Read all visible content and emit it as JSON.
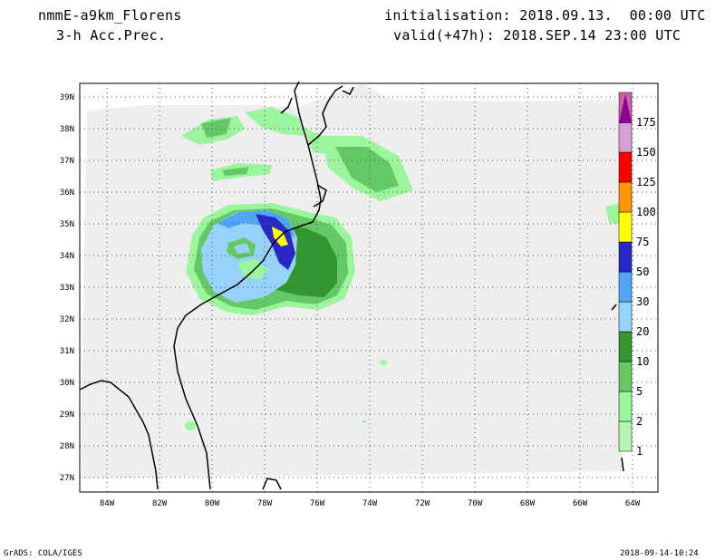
{
  "header": {
    "model": "nmmE-a9km_Florens",
    "field": "3-h Acc.Prec.",
    "init": "initialisation: 2018.09.13.  00:00 UTC",
    "valid": "valid(+47h): 2018.SEP.14 23:00 UTC"
  },
  "footer": {
    "credit": "GrADS: COLA/IGES",
    "timestamp": "2018-09-14-10:24"
  },
  "map": {
    "lat_labels": [
      "39N",
      "38N",
      "37N",
      "36N",
      "35N",
      "34N",
      "33N",
      "32N",
      "31N",
      "30N",
      "29N",
      "28N",
      "27N"
    ],
    "lon_labels": [
      "84W",
      "82W",
      "80W",
      "78W",
      "76W",
      "74W",
      "72W",
      "70W",
      "68W",
      "66W",
      "64W"
    ],
    "colors": {
      "background": "#ffffff",
      "domain_fill": "#eeeeee",
      "grid": "#555555",
      "coast": "#000000"
    }
  },
  "legend": {
    "levels": [
      {
        "label": "1",
        "color": "#b4f5b4"
      },
      {
        "label": "2",
        "color": "#9cf59c"
      },
      {
        "label": "5",
        "color": "#64c864"
      },
      {
        "label": "10",
        "color": "#329632"
      },
      {
        "label": "20",
        "color": "#96d2fa"
      },
      {
        "label": "30",
        "color": "#50a5f5"
      },
      {
        "label": "50",
        "color": "#2828c8"
      },
      {
        "label": "75",
        "color": "#ffff00"
      },
      {
        "label": "100",
        "color": "#ff9600"
      },
      {
        "label": "125",
        "color": "#ff0000"
      },
      {
        "label": "150",
        "color": "#d2a0d2"
      },
      {
        "label": "175",
        "color": "#c864a0"
      }
    ],
    "top_color": "#8c0096"
  }
}
